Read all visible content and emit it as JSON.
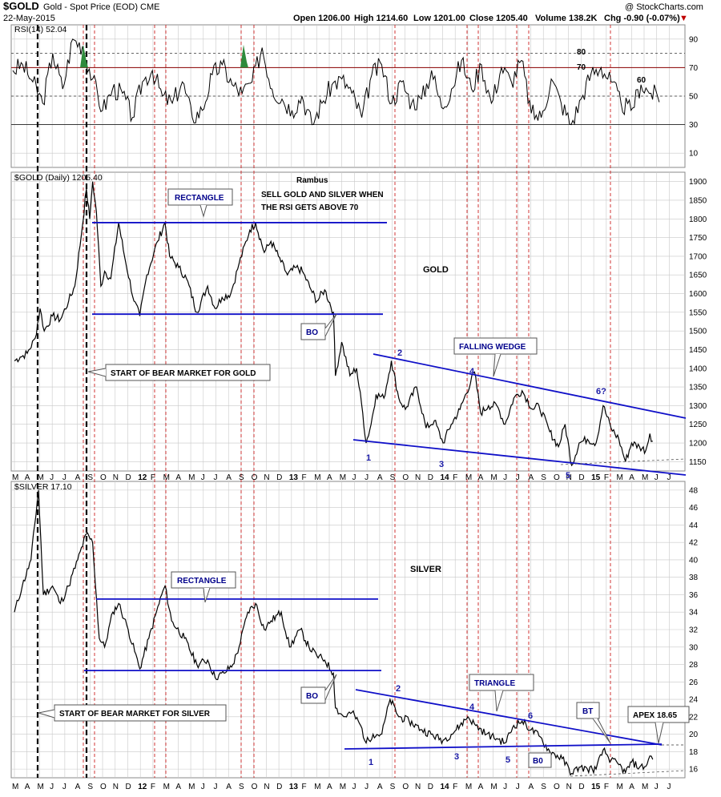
{
  "header": {
    "symbol": "$GOLD",
    "subtitle": "Gold - Spot Price (EOD)  CME",
    "date": "22-May-2015",
    "open": "Open 1206.00",
    "high": "High 1214.60",
    "low": "Low 1201.00",
    "close": "Close 1205.40",
    "volume": "Volume 138.2K",
    "chg": "Chg -0.90 (-0.07%)",
    "chg_arrow": "▼",
    "copyright": "@ StockCharts.com"
  },
  "colors": {
    "price_line": "#000000",
    "rsi_line": "#000000",
    "trend_lines": "#1010c8",
    "event_lines": "#cc2222",
    "start_lines": "#000000",
    "grid": "#c8c8c8",
    "rsi_70_line": "#8b0000",
    "rsi_overbought_fill": "#2e8b3c",
    "annotation_text": "#00008b"
  },
  "month_axis": {
    "labels": [
      "M",
      "A",
      "M",
      "J",
      "J",
      "A",
      "S",
      "O",
      "N",
      "D",
      "12",
      "F",
      "M",
      "A",
      "M",
      "J",
      "J",
      "A",
      "S",
      "O",
      "N",
      "D",
      "13",
      "F",
      "M",
      "A",
      "M",
      "J",
      "J",
      "A",
      "S",
      "O",
      "N",
      "D",
      "14",
      "F",
      "M",
      "A",
      "M",
      "J",
      "J",
      "A",
      "S",
      "O",
      "N",
      "D",
      "15",
      "F",
      "M",
      "A",
      "M",
      "J",
      "J"
    ]
  },
  "chart_data": [
    {
      "type": "line",
      "panel": "RSI",
      "title": "RSI(14) 52.04",
      "series": [
        {
          "name": "RSI(14)",
          "last": 52.04
        }
      ],
      "ylim": [
        0,
        100
      ],
      "y_ticks": [
        10,
        30,
        50,
        70,
        90
      ],
      "levels": {
        "overbought": 70,
        "oversold": 30,
        "dashed": [
          50,
          80
        ]
      },
      "annotations": [
        "80",
        "70",
        "60"
      ],
      "approx_values": [
        68,
        72,
        60,
        45,
        80,
        55,
        90,
        85,
        62,
        40,
        55,
        52,
        35,
        60,
        68,
        50,
        45,
        60,
        35,
        40,
        65,
        72,
        58,
        52,
        60,
        84,
        55,
        48,
        40,
        50,
        30,
        45,
        58,
        62,
        52,
        35,
        65,
        72,
        45,
        60,
        45,
        48,
        68,
        42,
        55,
        75,
        55,
        72,
        45,
        70,
        60,
        75,
        38,
        35,
        62,
        45,
        30,
        48,
        66,
        70,
        60,
        45,
        40,
        58,
        52,
        50
      ]
    },
    {
      "type": "line",
      "panel": "GOLD",
      "title": "$GOLD (Daily) 1205.40",
      "ylim": [
        1125,
        1925
      ],
      "y_ticks": [
        1150,
        1200,
        1250,
        1300,
        1350,
        1400,
        1450,
        1500,
        1550,
        1600,
        1650,
        1700,
        1750,
        1800,
        1850,
        1900
      ],
      "series": [
        {
          "name": "$GOLD (Daily)",
          "last": 1205.4,
          "points": [
            [
              "2011-03-01",
              1420
            ],
            [
              "2011-03-15",
              1430
            ],
            [
              "2011-04-01",
              1440
            ],
            [
              "2011-04-20",
              1480
            ],
            [
              "2011-05-02",
              1560
            ],
            [
              "2011-05-12",
              1500
            ],
            [
              "2011-06-01",
              1540
            ],
            [
              "2011-06-20",
              1530
            ],
            [
              "2011-07-10",
              1580
            ],
            [
              "2011-07-25",
              1620
            ],
            [
              "2011-08-10",
              1760
            ],
            [
              "2011-08-22",
              1880
            ],
            [
              "2011-08-30",
              1800
            ],
            [
              "2011-09-06",
              1900
            ],
            [
              "2011-09-15",
              1820
            ],
            [
              "2011-09-26",
              1620
            ],
            [
              "2011-10-05",
              1660
            ],
            [
              "2011-10-20",
              1640
            ],
            [
              "2011-11-08",
              1790
            ],
            [
              "2011-11-22",
              1700
            ],
            [
              "2011-12-15",
              1580
            ],
            [
              "2011-12-29",
              1540
            ],
            [
              "2012-01-15",
              1650
            ],
            [
              "2012-02-10",
              1740
            ],
            [
              "2012-02-28",
              1790
            ],
            [
              "2012-03-10",
              1700
            ],
            [
              "2012-04-01",
              1670
            ],
            [
              "2012-04-20",
              1640
            ],
            [
              "2012-05-15",
              1550
            ],
            [
              "2012-06-10",
              1620
            ],
            [
              "2012-06-28",
              1560
            ],
            [
              "2012-07-15",
              1590
            ],
            [
              "2012-08-05",
              1600
            ],
            [
              "2012-08-25",
              1680
            ],
            [
              "2012-09-20",
              1770
            ],
            [
              "2012-10-04",
              1790
            ],
            [
              "2012-10-25",
              1710
            ],
            [
              "2012-11-10",
              1740
            ],
            [
              "2012-11-28",
              1700
            ],
            [
              "2012-12-20",
              1650
            ],
            [
              "2013-01-10",
              1670
            ],
            [
              "2013-01-25",
              1660
            ],
            [
              "2013-02-15",
              1610
            ],
            [
              "2013-03-01",
              1580
            ],
            [
              "2013-03-20",
              1610
            ],
            [
              "2013-04-10",
              1550
            ],
            [
              "2013-04-15",
              1380
            ],
            [
              "2013-04-30",
              1470
            ],
            [
              "2013-05-20",
              1380
            ],
            [
              "2013-06-05",
              1400
            ],
            [
              "2013-06-20",
              1280
            ],
            [
              "2013-06-28",
              1200
            ],
            [
              "2013-07-10",
              1250
            ],
            [
              "2013-07-22",
              1330
            ],
            [
              "2013-08-10",
              1320
            ],
            [
              "2013-08-28",
              1420
            ],
            [
              "2013-09-15",
              1320
            ],
            [
              "2013-10-01",
              1290
            ],
            [
              "2013-10-28",
              1350
            ],
            [
              "2013-11-20",
              1240
            ],
            [
              "2013-12-10",
              1260
            ],
            [
              "2013-12-31",
              1200
            ],
            [
              "2014-01-20",
              1250
            ],
            [
              "2014-02-10",
              1290
            ],
            [
              "2014-03-17",
              1390
            ],
            [
              "2014-04-01",
              1280
            ],
            [
              "2014-04-20",
              1300
            ],
            [
              "2014-05-10",
              1300
            ],
            [
              "2014-05-30",
              1250
            ],
            [
              "2014-06-20",
              1320
            ],
            [
              "2014-07-10",
              1340
            ],
            [
              "2014-08-05",
              1290
            ],
            [
              "2014-08-20",
              1300
            ],
            [
              "2014-09-15",
              1230
            ],
            [
              "2014-10-06",
              1190
            ],
            [
              "2014-10-22",
              1250
            ],
            [
              "2014-11-07",
              1140
            ],
            [
              "2014-11-25",
              1200
            ],
            [
              "2014-12-15",
              1210
            ],
            [
              "2015-01-05",
              1200
            ],
            [
              "2015-01-22",
              1300
            ],
            [
              "2015-02-10",
              1240
            ],
            [
              "2015-03-01",
              1210
            ],
            [
              "2015-03-17",
              1150
            ],
            [
              "2015-04-01",
              1200
            ],
            [
              "2015-04-20",
              1190
            ],
            [
              "2015-05-05",
              1180
            ],
            [
              "2015-05-15",
              1225
            ],
            [
              "2015-05-22",
              1205
            ]
          ]
        }
      ],
      "annotations": {
        "author": "Rambus",
        "note_line1": "SELL GOLD AND SILVER WHEN",
        "note_line2": "THE RSI GETS ABOVE 70",
        "panel_label": "GOLD",
        "rectangle": "RECTANGLE",
        "falling_wedge": "FALLING WEDGE",
        "breakout": "BO",
        "bear_start": "START OF BEAR MARKET FOR GOLD",
        "points": [
          "1",
          "2",
          "3",
          "4",
          "5",
          "6?"
        ]
      },
      "trendlines": {
        "rectangle_top": 1790,
        "rectangle_bottom": 1545
      }
    },
    {
      "type": "line",
      "panel": "SILVER",
      "title": "$SILVER 17.10",
      "ylim": [
        15,
        49
      ],
      "y_ticks": [
        16,
        18,
        20,
        22,
        24,
        26,
        28,
        30,
        32,
        34,
        36,
        38,
        40,
        42,
        44,
        46,
        48
      ],
      "series": [
        {
          "name": "$SILVER",
          "last": 17.1,
          "points": [
            [
              "2011-03-01",
              34
            ],
            [
              "2011-03-20",
              37
            ],
            [
              "2011-04-10",
              40
            ],
            [
              "2011-04-28",
              48
            ],
            [
              "2011-05-10",
              36
            ],
            [
              "2011-06-01",
              37
            ],
            [
              "2011-06-20",
              35
            ],
            [
              "2011-07-10",
              37
            ],
            [
              "2011-08-01",
              40
            ],
            [
              "2011-08-22",
              43
            ],
            [
              "2011-09-06",
              42
            ],
            [
              "2011-09-22",
              31
            ],
            [
              "2011-10-05",
              30
            ],
            [
              "2011-10-25",
              34
            ],
            [
              "2011-11-08",
              35
            ],
            [
              "2011-12-01",
              32
            ],
            [
              "2011-12-29",
              27.5
            ],
            [
              "2012-01-20",
              31
            ],
            [
              "2012-02-20",
              36
            ],
            [
              "2012-02-28",
              37
            ],
            [
              "2012-03-15",
              33
            ],
            [
              "2012-04-15",
              31
            ],
            [
              "2012-05-15",
              28
            ],
            [
              "2012-06-10",
              28.5
            ],
            [
              "2012-06-28",
              26.5
            ],
            [
              "2012-07-20",
              27
            ],
            [
              "2012-08-10",
              28
            ],
            [
              "2012-08-25",
              30
            ],
            [
              "2012-09-15",
              34
            ],
            [
              "2012-10-04",
              35
            ],
            [
              "2012-10-25",
              32
            ],
            [
              "2012-11-10",
              33
            ],
            [
              "2012-12-05",
              34
            ],
            [
              "2012-12-25",
              30
            ],
            [
              "2013-01-20",
              32
            ],
            [
              "2013-02-10",
              30
            ],
            [
              "2013-03-01",
              29
            ],
            [
              "2013-03-20",
              28.5
            ],
            [
              "2013-04-10",
              27
            ],
            [
              "2013-04-15",
              23
            ],
            [
              "2013-05-05",
              22
            ],
            [
              "2013-05-25",
              22.5
            ],
            [
              "2013-06-15",
              21
            ],
            [
              "2013-06-28",
              19
            ],
            [
              "2013-07-15",
              20
            ],
            [
              "2013-08-05",
              20
            ],
            [
              "2013-08-25",
              24
            ],
            [
              "2013-09-15",
              22
            ],
            [
              "2013-10-10",
              21.5
            ],
            [
              "2013-11-10",
              20.5
            ],
            [
              "2013-12-31",
              19.3
            ],
            [
              "2014-01-20",
              20
            ],
            [
              "2014-02-10",
              21
            ],
            [
              "2014-03-01",
              22
            ],
            [
              "2014-03-20",
              21
            ],
            [
              "2014-04-15",
              20
            ],
            [
              "2014-05-10",
              19.5
            ],
            [
              "2014-05-30",
              19
            ],
            [
              "2014-06-20",
              21
            ],
            [
              "2014-07-10",
              21.5
            ],
            [
              "2014-08-01",
              20.5
            ],
            [
              "2014-08-20",
              19.8
            ],
            [
              "2014-09-15",
              18
            ],
            [
              "2014-10-15",
              17.2
            ],
            [
              "2014-11-07",
              15.5
            ],
            [
              "2014-11-25",
              16.2
            ],
            [
              "2014-12-15",
              16
            ],
            [
              "2015-01-05",
              16
            ],
            [
              "2015-01-22",
              18.2
            ],
            [
              "2015-02-10",
              17
            ],
            [
              "2015-03-01",
              16.5
            ],
            [
              "2015-03-17",
              15.6
            ],
            [
              "2015-04-01",
              16.8
            ],
            [
              "2015-04-20",
              16.2
            ],
            [
              "2015-05-05",
              16.3
            ],
            [
              "2015-05-15",
              17.5
            ],
            [
              "2015-05-22",
              17.1
            ]
          ]
        }
      ],
      "annotations": {
        "panel_label": "SILVER",
        "rectangle": "RECTANGLE",
        "triangle": "TRIANGLE",
        "breakout": "BO",
        "breakout2": "B0",
        "backtest": "BT",
        "apex": "APEX 18.65",
        "bear_start": "START OF BEAR MARKET FOR SILVER",
        "points": [
          "1",
          "2",
          "3",
          "4",
          "5",
          "6"
        ]
      },
      "trendlines": {
        "rectangle_top": 35.5,
        "rectangle_bottom": 27.3,
        "triangle_support": 18.65
      }
    }
  ]
}
